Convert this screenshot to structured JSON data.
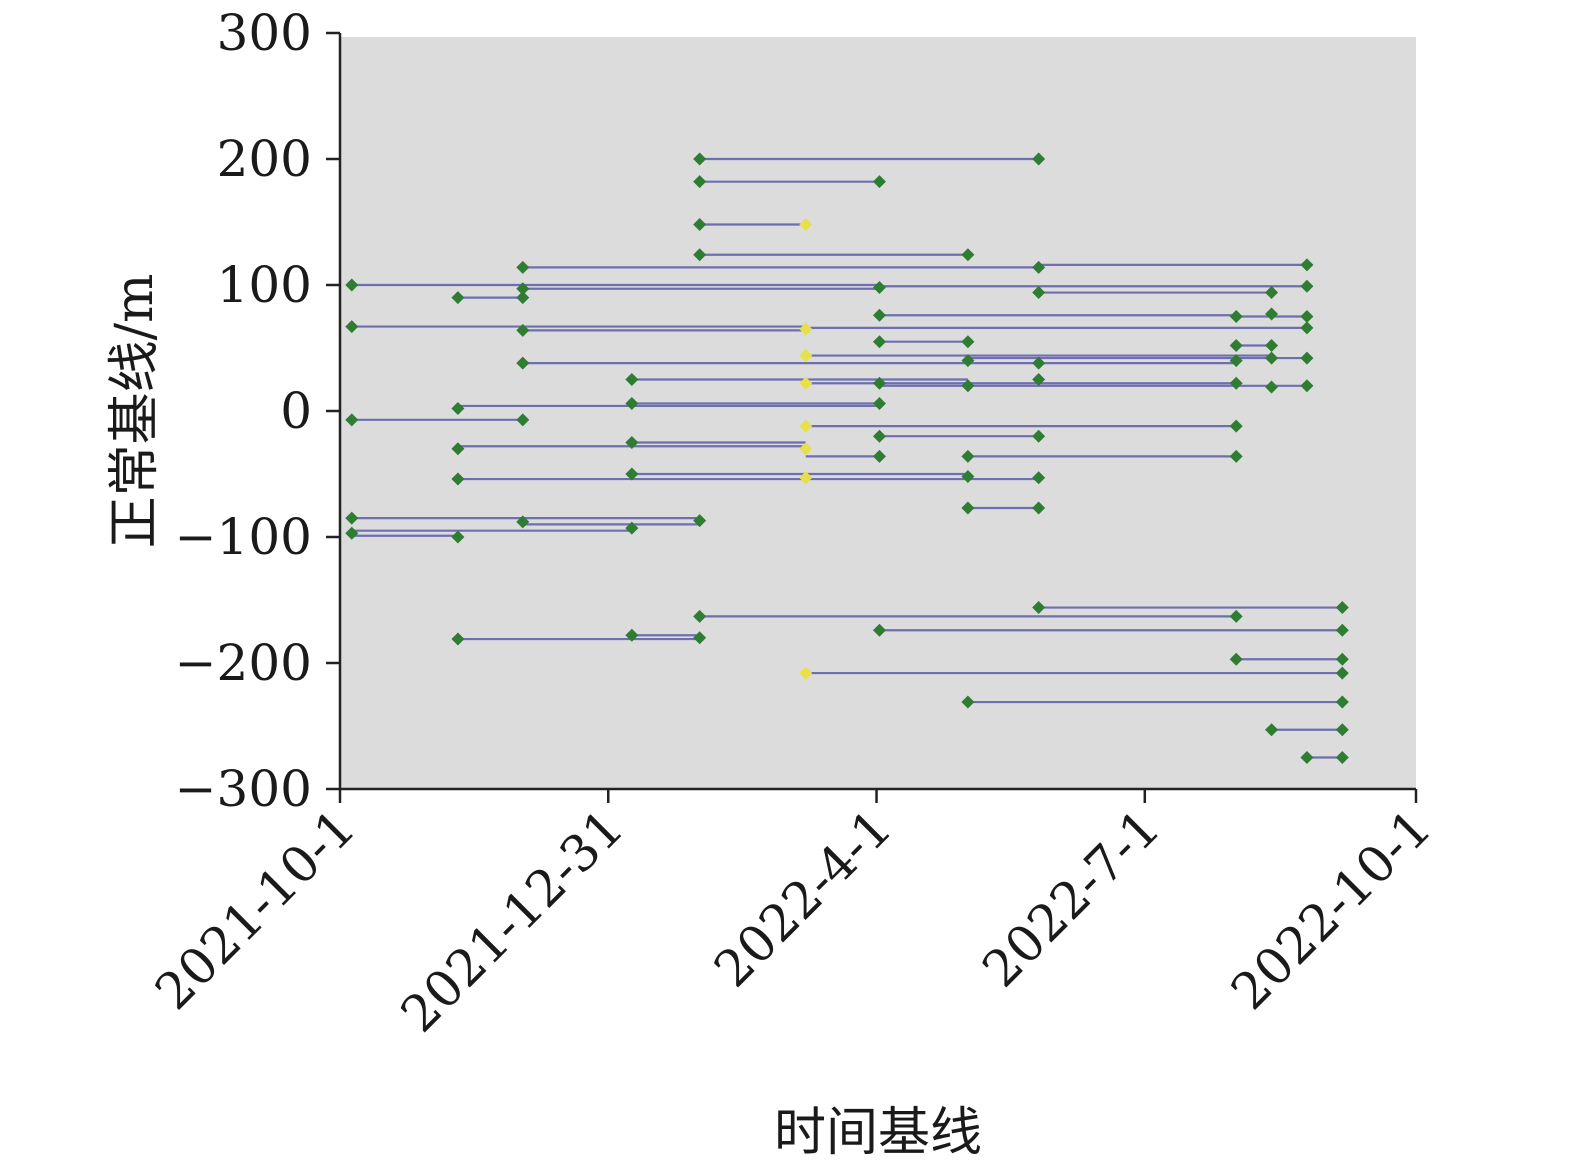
{
  "chart_data": {
    "type": "line",
    "xlabel": "时间基线",
    "ylabel": "正常基线/m",
    "x_ticks": [
      "2021-10-1",
      "2021-12-31",
      "2022-4-1",
      "2022-7-1",
      "2022-10-1"
    ],
    "y_ticks": [
      "300",
      "200",
      "100",
      "0",
      "−100",
      "−200",
      "−300"
    ],
    "xlim": [
      "2021-10-1",
      "2022-10-1"
    ],
    "ylim": [
      -300,
      300
    ],
    "grid": false,
    "plot_background": "#dcdcdc",
    "colors": {
      "point": "#2e7d32",
      "point_highlight": "#e6e04a",
      "pair_line": "#5a5aa8",
      "axis": "#222222"
    },
    "acquisitions": [
      {
        "date": "2021-10-5",
        "normal_baseline": 100
      },
      {
        "date": "2021-10-5",
        "normal_baseline": 67
      },
      {
        "date": "2021-10-5",
        "normal_baseline": -7
      },
      {
        "date": "2021-10-5",
        "normal_baseline": -85
      },
      {
        "date": "2021-10-5",
        "normal_baseline": -97
      },
      {
        "date": "2021-11-10",
        "normal_baseline": 90
      },
      {
        "date": "2021-11-10",
        "normal_baseline": 2
      },
      {
        "date": "2021-11-10",
        "normal_baseline": -30
      },
      {
        "date": "2021-11-10",
        "normal_baseline": -54
      },
      {
        "date": "2021-11-10",
        "normal_baseline": -100
      },
      {
        "date": "2021-11-10",
        "normal_baseline": -181
      },
      {
        "date": "2021-12-2",
        "normal_baseline": 114
      },
      {
        "date": "2021-12-2",
        "normal_baseline": 97
      },
      {
        "date": "2021-12-2",
        "normal_baseline": 90
      },
      {
        "date": "2021-12-2",
        "normal_baseline": 64
      },
      {
        "date": "2021-12-2",
        "normal_baseline": 38
      },
      {
        "date": "2021-12-2",
        "normal_baseline": -7
      },
      {
        "date": "2021-12-2",
        "normal_baseline": -88
      },
      {
        "date": "2022-1-8",
        "normal_baseline": 25
      },
      {
        "date": "2022-1-8",
        "normal_baseline": 6
      },
      {
        "date": "2022-1-8",
        "normal_baseline": -25
      },
      {
        "date": "2022-1-8",
        "normal_baseline": -50
      },
      {
        "date": "2022-1-8",
        "normal_baseline": -93
      },
      {
        "date": "2022-1-8",
        "normal_baseline": -178
      },
      {
        "date": "2022-1-31",
        "normal_baseline": 200
      },
      {
        "date": "2022-1-31",
        "normal_baseline": 182
      },
      {
        "date": "2022-1-31",
        "normal_baseline": 148
      },
      {
        "date": "2022-1-31",
        "normal_baseline": 124
      },
      {
        "date": "2022-1-31",
        "normal_baseline": -87
      },
      {
        "date": "2022-1-31",
        "normal_baseline": -163
      },
      {
        "date": "2022-1-31",
        "normal_baseline": -180
      },
      {
        "date": "2022-3-8",
        "normal_baseline": 148,
        "highlight": true
      },
      {
        "date": "2022-3-8",
        "normal_baseline": 65,
        "highlight": true
      },
      {
        "date": "2022-3-8",
        "normal_baseline": 44,
        "highlight": true
      },
      {
        "date": "2022-3-8",
        "normal_baseline": 22,
        "highlight": true
      },
      {
        "date": "2022-3-8",
        "normal_baseline": -12,
        "highlight": true
      },
      {
        "date": "2022-3-8",
        "normal_baseline": -30,
        "highlight": true
      },
      {
        "date": "2022-3-8",
        "normal_baseline": -53,
        "highlight": true
      },
      {
        "date": "2022-3-8",
        "normal_baseline": -208,
        "highlight": true
      },
      {
        "date": "2022-4-2",
        "normal_baseline": 182
      },
      {
        "date": "2022-4-2",
        "normal_baseline": 98
      },
      {
        "date": "2022-4-2",
        "normal_baseline": 76
      },
      {
        "date": "2022-4-2",
        "normal_baseline": 55
      },
      {
        "date": "2022-4-2",
        "normal_baseline": 22
      },
      {
        "date": "2022-4-2",
        "normal_baseline": 6
      },
      {
        "date": "2022-4-2",
        "normal_baseline": -20
      },
      {
        "date": "2022-4-2",
        "normal_baseline": -36
      },
      {
        "date": "2022-4-2",
        "normal_baseline": -174
      },
      {
        "date": "2022-5-2",
        "normal_baseline": 124
      },
      {
        "date": "2022-5-2",
        "normal_baseline": 55
      },
      {
        "date": "2022-5-2",
        "normal_baseline": 40
      },
      {
        "date": "2022-5-2",
        "normal_baseline": 20
      },
      {
        "date": "2022-5-2",
        "normal_baseline": -36
      },
      {
        "date": "2022-5-2",
        "normal_baseline": -52
      },
      {
        "date": "2022-5-2",
        "normal_baseline": -77
      },
      {
        "date": "2022-5-2",
        "normal_baseline": -231
      },
      {
        "date": "2022-5-26",
        "normal_baseline": 200
      },
      {
        "date": "2022-5-26",
        "normal_baseline": 114
      },
      {
        "date": "2022-5-26",
        "normal_baseline": 94
      },
      {
        "date": "2022-5-26",
        "normal_baseline": 38
      },
      {
        "date": "2022-5-26",
        "normal_baseline": 25
      },
      {
        "date": "2022-5-26",
        "normal_baseline": -20
      },
      {
        "date": "2022-5-26",
        "normal_baseline": -53
      },
      {
        "date": "2022-5-26",
        "normal_baseline": -77
      },
      {
        "date": "2022-5-26",
        "normal_baseline": -156
      },
      {
        "date": "2022-8-1",
        "normal_baseline": 75
      },
      {
        "date": "2022-8-1",
        "normal_baseline": 52
      },
      {
        "date": "2022-8-1",
        "normal_baseline": 40
      },
      {
        "date": "2022-8-1",
        "normal_baseline": 22
      },
      {
        "date": "2022-8-1",
        "normal_baseline": -12
      },
      {
        "date": "2022-8-1",
        "normal_baseline": -36
      },
      {
        "date": "2022-8-1",
        "normal_baseline": -163
      },
      {
        "date": "2022-8-1",
        "normal_baseline": -197
      },
      {
        "date": "2022-8-13",
        "normal_baseline": 94
      },
      {
        "date": "2022-8-13",
        "normal_baseline": 77
      },
      {
        "date": "2022-8-13",
        "normal_baseline": 52
      },
      {
        "date": "2022-8-13",
        "normal_baseline": 42
      },
      {
        "date": "2022-8-13",
        "normal_baseline": 19
      },
      {
        "date": "2022-8-13",
        "normal_baseline": -253
      },
      {
        "date": "2022-8-25",
        "normal_baseline": 116
      },
      {
        "date": "2022-8-25",
        "normal_baseline": 99
      },
      {
        "date": "2022-8-25",
        "normal_baseline": 75
      },
      {
        "date": "2022-8-25",
        "normal_baseline": 66
      },
      {
        "date": "2022-8-25",
        "normal_baseline": 42
      },
      {
        "date": "2022-8-25",
        "normal_baseline": 20
      },
      {
        "date": "2022-8-25",
        "normal_baseline": -275
      },
      {
        "date": "2022-9-6",
        "normal_baseline": -156
      },
      {
        "date": "2022-9-6",
        "normal_baseline": -174
      },
      {
        "date": "2022-9-6",
        "normal_baseline": -197
      },
      {
        "date": "2022-9-6",
        "normal_baseline": -208
      },
      {
        "date": "2022-9-6",
        "normal_baseline": -231
      },
      {
        "date": "2022-9-6",
        "normal_baseline": -253
      },
      {
        "date": "2022-9-6",
        "normal_baseline": -275
      }
    ],
    "pairs": [
      {
        "x": [
          "2022-1-31",
          "2022-5-26"
        ],
        "y": [
          200,
          200
        ]
      },
      {
        "x": [
          "2022-1-31",
          "2022-4-2"
        ],
        "y": [
          182,
          182
        ]
      },
      {
        "x": [
          "2022-1-31",
          "2022-3-8"
        ],
        "y": [
          148,
          148
        ]
      },
      {
        "x": [
          "2022-1-31",
          "2022-5-2"
        ],
        "y": [
          124,
          124
        ]
      },
      {
        "x": [
          "2021-12-2",
          "2022-5-26"
        ],
        "y": [
          114,
          114
        ]
      },
      {
        "x": [
          "2022-5-26",
          "2022-8-25"
        ],
        "y": [
          116,
          116
        ]
      },
      {
        "x": [
          "2021-10-5",
          "2022-4-2"
        ],
        "y": [
          100,
          100
        ]
      },
      {
        "x": [
          "2021-12-2",
          "2022-4-2"
        ],
        "y": [
          97,
          97
        ]
      },
      {
        "x": [
          "2022-4-2",
          "2022-8-25"
        ],
        "y": [
          99,
          99
        ]
      },
      {
        "x": [
          "2022-5-26",
          "2022-8-13"
        ],
        "y": [
          94,
          94
        ]
      },
      {
        "x": [
          "2021-11-10",
          "2021-12-2"
        ],
        "y": [
          90,
          90
        ]
      },
      {
        "x": [
          "2022-4-2",
          "2022-8-1"
        ],
        "y": [
          76,
          76
        ]
      },
      {
        "x": [
          "2022-8-1",
          "2022-8-25"
        ],
        "y": [
          75,
          75
        ]
      },
      {
        "x": [
          "2021-10-5",
          "2022-3-8"
        ],
        "y": [
          67,
          67
        ]
      },
      {
        "x": [
          "2022-3-8",
          "2022-8-25"
        ],
        "y": [
          66,
          66
        ]
      },
      {
        "x": [
          "2021-12-2",
          "2022-3-8"
        ],
        "y": [
          64,
          64
        ]
      },
      {
        "x": [
          "2022-4-2",
          "2022-5-2"
        ],
        "y": [
          55,
          55
        ]
      },
      {
        "x": [
          "2022-8-1",
          "2022-8-13"
        ],
        "y": [
          52,
          52
        ]
      },
      {
        "x": [
          "2022-3-8",
          "2022-8-13"
        ],
        "y": [
          44,
          44
        ]
      },
      {
        "x": [
          "2022-5-2",
          "2022-8-25"
        ],
        "y": [
          42,
          42
        ]
      },
      {
        "x": [
          "2021-12-2",
          "2022-8-1"
        ],
        "y": [
          38,
          38
        ]
      },
      {
        "x": [
          "2022-1-8",
          "2022-5-2"
        ],
        "y": [
          25,
          25
        ]
      },
      {
        "x": [
          "2022-3-8",
          "2022-8-1"
        ],
        "y": [
          22,
          22
        ]
      },
      {
        "x": [
          "2022-4-2",
          "2022-8-25"
        ],
        "y": [
          20,
          20
        ]
      },
      {
        "x": [
          "2021-11-10",
          "2022-4-2"
        ],
        "y": [
          4,
          4
        ]
      },
      {
        "x": [
          "2022-1-8",
          "2022-4-2"
        ],
        "y": [
          6,
          6
        ]
      },
      {
        "x": [
          "2021-10-5",
          "2021-12-2"
        ],
        "y": [
          -7,
          -7
        ]
      },
      {
        "x": [
          "2022-3-8",
          "2022-8-1"
        ],
        "y": [
          -12,
          -12
        ]
      },
      {
        "x": [
          "2022-4-2",
          "2022-5-26"
        ],
        "y": [
          -20,
          -20
        ]
      },
      {
        "x": [
          "2021-11-10",
          "2022-3-8"
        ],
        "y": [
          -28,
          -28
        ]
      },
      {
        "x": [
          "2022-1-8",
          "2022-3-8"
        ],
        "y": [
          -25,
          -25
        ]
      },
      {
        "x": [
          "2022-3-8",
          "2022-4-2"
        ],
        "y": [
          -36,
          -36
        ]
      },
      {
        "x": [
          "2022-5-2",
          "2022-8-1"
        ],
        "y": [
          -36,
          -36
        ]
      },
      {
        "x": [
          "2022-1-8",
          "2022-5-2"
        ],
        "y": [
          -50,
          -50
        ]
      },
      {
        "x": [
          "2021-11-10",
          "2022-5-26"
        ],
        "y": [
          -54,
          -54
        ]
      },
      {
        "x": [
          "2022-5-2",
          "2022-5-26"
        ],
        "y": [
          -77,
          -77
        ]
      },
      {
        "x": [
          "2021-10-5",
          "2022-1-31"
        ],
        "y": [
          -85,
          -85
        ]
      },
      {
        "x": [
          "2021-12-2",
          "2022-1-31"
        ],
        "y": [
          -90,
          -90
        ]
      },
      {
        "x": [
          "2021-10-5",
          "2022-1-8"
        ],
        "y": [
          -95,
          -95
        ]
      },
      {
        "x": [
          "2021-10-5",
          "2021-11-10"
        ],
        "y": [
          -99,
          -99
        ]
      },
      {
        "x": [
          "2022-5-26",
          "2022-9-6"
        ],
        "y": [
          -156,
          -156
        ]
      },
      {
        "x": [
          "2022-1-31",
          "2022-8-1"
        ],
        "y": [
          -163,
          -163
        ]
      },
      {
        "x": [
          "2022-4-2",
          "2022-9-6"
        ],
        "y": [
          -174,
          -174
        ]
      },
      {
        "x": [
          "2022-1-8",
          "2022-1-31"
        ],
        "y": [
          -178,
          -178
        ]
      },
      {
        "x": [
          "2021-11-10",
          "2022-1-31"
        ],
        "y": [
          -181,
          -181
        ]
      },
      {
        "x": [
          "2022-8-1",
          "2022-9-6"
        ],
        "y": [
          -197,
          -197
        ]
      },
      {
        "x": [
          "2022-3-8",
          "2022-9-6"
        ],
        "y": [
          -208,
          -208
        ]
      },
      {
        "x": [
          "2022-5-2",
          "2022-9-6"
        ],
        "y": [
          -231,
          -231
        ]
      },
      {
        "x": [
          "2022-8-13",
          "2022-9-6"
        ],
        "y": [
          -253,
          -253
        ]
      },
      {
        "x": [
          "2022-8-25",
          "2022-9-6"
        ],
        "y": [
          -275,
          -275
        ]
      }
    ]
  }
}
